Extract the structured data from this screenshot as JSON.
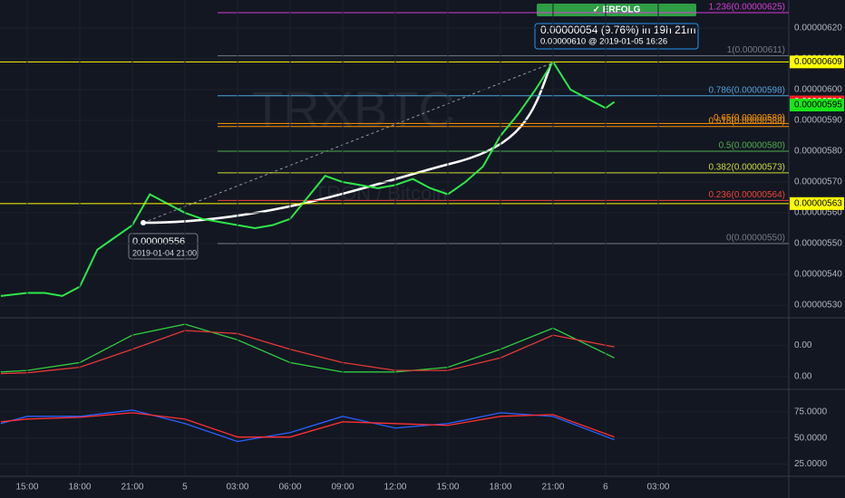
{
  "chart_data": [
    {
      "type": "line",
      "watermark": [
        "TRXBTC",
        "TRON / Bitcoin"
      ],
      "x": [
        -1.5,
        0,
        1,
        2,
        3,
        4,
        5,
        6,
        7,
        8,
        9,
        10,
        11,
        12,
        13,
        14,
        15,
        16,
        17,
        18,
        19,
        20,
        21,
        22,
        23,
        24,
        25,
        26,
        27,
        28,
        29,
        30,
        31,
        32,
        33,
        33.5
      ],
      "series": [
        {
          "color": "#2ee84a",
          "values": [
            5.33e-07,
            5.34e-07,
            5.34e-07,
            5.33e-07,
            5.36e-07,
            5.48e-07,
            5.52e-07,
            5.56e-07,
            5.66e-07,
            5.63e-07,
            5.6e-07,
            5.58e-07,
            5.57e-07,
            5.56e-07,
            5.55e-07,
            5.56e-07,
            5.58e-07,
            5.65e-07,
            5.72e-07,
            5.7e-07,
            5.69e-07,
            5.68e-07,
            5.69e-07,
            5.71e-07,
            5.68e-07,
            5.66e-07,
            5.7e-07,
            5.75e-07,
            5.85e-07,
            5.92e-07,
            6e-07,
            6.09e-07,
            6e-07,
            5.97e-07,
            5.94e-07,
            5.96e-07
          ]
        }
      ],
      "xlim": [
        -1.55,
        43.45
      ],
      "ylim": [
        5.262e-07,
        6.291e-07
      ],
      "yticks": [
        {
          "value": 6.2e-07,
          "label": "0.00000620"
        },
        {
          "value": 6.1e-07,
          "label": "0.00000610"
        },
        {
          "value": 6e-07,
          "label": "0.00000600"
        },
        {
          "value": 5.9e-07,
          "label": "0.00000590"
        },
        {
          "value": 5.8e-07,
          "label": "0.00000580"
        },
        {
          "value": 5.7e-07,
          "label": "0.00000570"
        },
        {
          "value": 5.6e-07,
          "label": "0.00000560"
        },
        {
          "value": 5.5e-07,
          "label": "0.00000550"
        },
        {
          "value": 5.4e-07,
          "label": "0.00000540"
        },
        {
          "value": 5.3e-07,
          "label": "0.00000530"
        }
      ],
      "levels": [
        {
          "label": "1.236(0.00000625)",
          "value": 6.25e-07,
          "color": "#d63cd6"
        },
        {
          "label": "1(0.00000611)",
          "value": 6.11e-07,
          "color": "#787b86"
        },
        {
          "label": "0.786(0.00000598)",
          "value": 5.98e-07,
          "color": "#4fa3d8"
        },
        {
          "label": "0.65(0.00000589)",
          "value": 5.89e-07,
          "color": "#ff9800"
        },
        {
          "label": "0.618(0.00000588)",
          "value": 5.88e-07,
          "color": "#ff9800"
        },
        {
          "label": "0.5(0.00000580)",
          "value": 5.8e-07,
          "color": "#4caf50"
        },
        {
          "label": "0.382(0.00000573)",
          "value": 5.73e-07,
          "color": "#cddc39"
        },
        {
          "label": "0.236(0.00000564)",
          "value": 5.64e-07,
          "color": "#f44336"
        },
        {
          "label": "0(0.00000550)",
          "value": 5.5e-07,
          "color": "#787b86"
        }
      ],
      "price_tags": [
        {
          "label": "0.00000609",
          "value": 6.09e-07,
          "color": "#ffff00"
        },
        {
          "label": "0.00000596",
          "value": 5.96e-07,
          "color": "#ff1f1f"
        },
        {
          "label": "0.00000595",
          "value": 5.95e-07,
          "color": "#19e619"
        },
        {
          "label": "0.00000563",
          "value": 5.63e-07,
          "color": "#ffff00"
        }
      ],
      "annotations": {
        "badge": "✓ ERFOLG",
        "change": "0.00000054 (9.76%)  in 19h 21m",
        "target": "0.00000610 @ 2019-01-05  16:26",
        "start_price": "0.00000556",
        "start_date": "2019-01-04 21:00"
      }
    },
    {
      "type": "line",
      "x": [
        -1.5,
        0,
        3,
        6,
        9,
        12,
        15,
        18,
        21,
        24,
        27,
        30,
        33.5
      ],
      "series": [
        {
          "color": "#2ecc40",
          "values": [
            6e-09,
            8e-09,
            1.8e-08,
            5.3e-08,
            6.7e-08,
            4.7e-08,
            1.8e-08,
            6e-09,
            6e-09,
            1.2e-08,
            3.5e-08,
            6.2e-08,
            2.4e-08
          ]
        },
        {
          "color": "#e53935",
          "values": [
            4e-09,
            5e-09,
            1.2e-08,
            3.5e-08,
            5.9e-08,
            5.5e-08,
            3.5e-08,
            1.8e-08,
            8e-09,
            8e-09,
            2.4e-08,
            5.3e-08,
            3.8e-08
          ]
        }
      ],
      "xlim": [
        -1.55,
        43.45
      ],
      "ylim": [
        -1.5e-08,
        7.4e-08
      ],
      "yticks": [
        {
          "value": 4e-08,
          "label": "0.00"
        },
        {
          "value": 0,
          "label": "0.00"
        }
      ]
    },
    {
      "type": "line",
      "x": [
        -1.5,
        0,
        3,
        6,
        9,
        12,
        15,
        18,
        21,
        24,
        27,
        30,
        33.5
      ],
      "series": [
        {
          "color": "#2962ff",
          "values": [
            63.8,
            70.7,
            70.7,
            76.7,
            63.8,
            46.6,
            55.2,
            70.7,
            59.5,
            63.8,
            74.1,
            70.7,
            48.3
          ]
        },
        {
          "color": "#ff3030",
          "values": [
            65.5,
            68.1,
            69.8,
            74.1,
            68.1,
            50.9,
            50.9,
            65.5,
            63.8,
            62.1,
            70.7,
            72.4,
            50.9
          ]
        }
      ],
      "xlim": [
        -1.55,
        43.45
      ],
      "ylim": [
        14.2,
        95.7
      ],
      "yticks": [
        {
          "value": 75,
          "label": "75.0000"
        },
        {
          "value": 50,
          "label": "50.0000"
        },
        {
          "value": 25,
          "label": "25.0000"
        }
      ],
      "xticks": [
        {
          "value": 0,
          "label": "15:00"
        },
        {
          "value": 3,
          "label": "18:00"
        },
        {
          "value": 6,
          "label": "21:00"
        },
        {
          "value": 9,
          "label": "5"
        },
        {
          "value": 12,
          "label": "03:00"
        },
        {
          "value": 15,
          "label": "06:00"
        },
        {
          "value": 18,
          "label": "09:00"
        },
        {
          "value": 21,
          "label": "12:00"
        },
        {
          "value": 24,
          "label": "15:00"
        },
        {
          "value": 27,
          "label": "18:00"
        },
        {
          "value": 30,
          "label": "21:00"
        },
        {
          "value": 33,
          "label": "6"
        },
        {
          "value": 36,
          "label": "03:00"
        }
      ]
    }
  ]
}
